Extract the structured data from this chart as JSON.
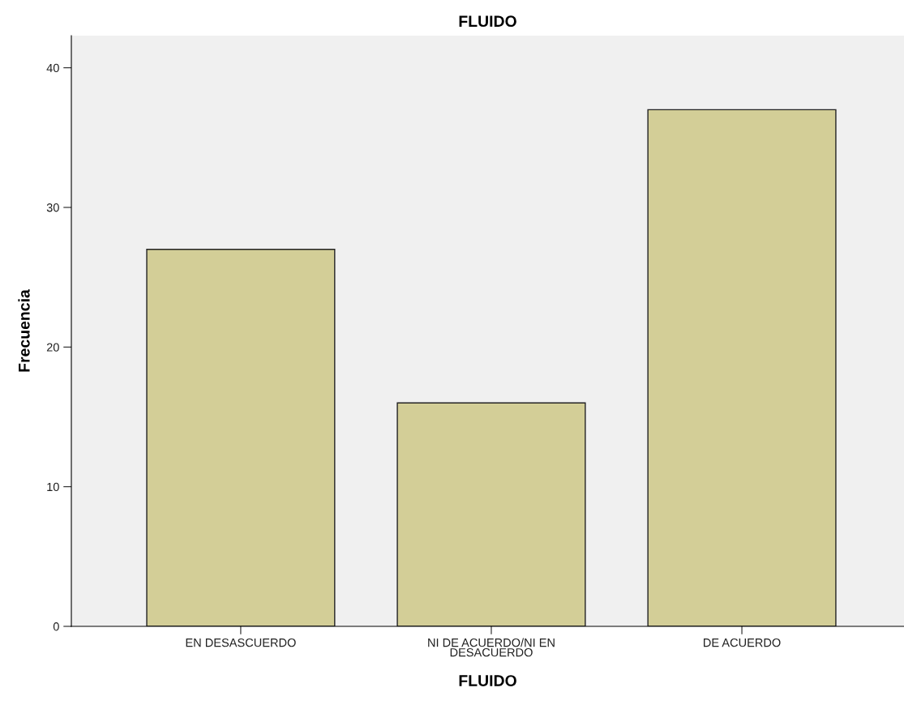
{
  "chart_data": {
    "type": "bar",
    "title": "FLUIDO",
    "xlabel": "FLUIDO",
    "ylabel": "Frecuencia",
    "categories": [
      "EN DESASCUERDO",
      "NI DE ACUERDO/NI EN\nDESACUERDO",
      "DE ACUERDO"
    ],
    "values": [
      27,
      16,
      37
    ],
    "color": "#d3ce97",
    "ylim": [
      0,
      42.3
    ],
    "yticks": [
      0,
      10,
      20,
      30,
      40
    ],
    "grid": false,
    "legend": false
  }
}
